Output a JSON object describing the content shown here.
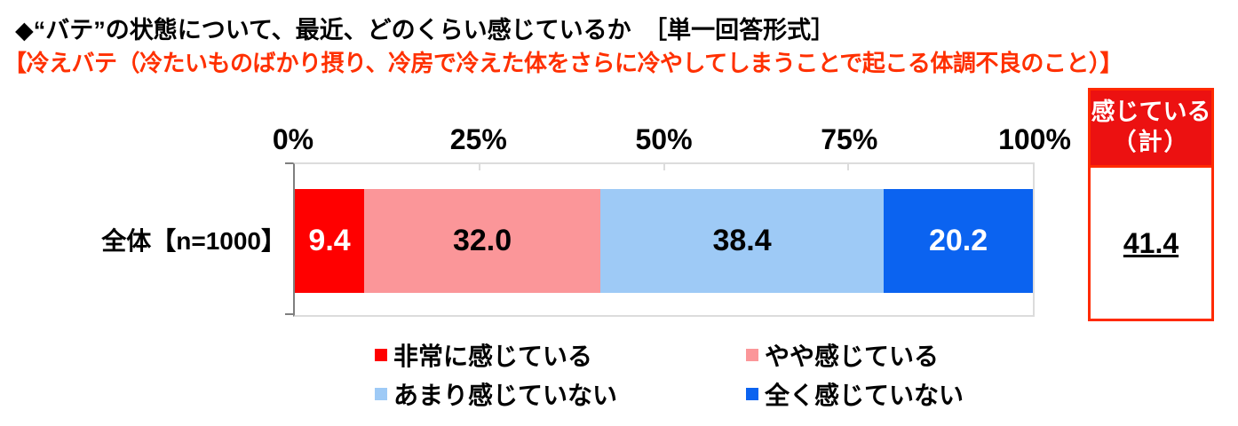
{
  "title": "◆“バテ”の状態について、最近、どのくらい感じているか　［単一回答形式］",
  "subtitle": "【冷えバテ（冷たいものばかり摂り、冷房で冷えた体をさらに冷やしてしまうことで起こる体調不良のこと）】",
  "chart_data": {
    "type": "bar",
    "orientation": "horizontal-stacked",
    "categories": [
      "全体【n=1000】"
    ],
    "x_ticks": [
      "0%",
      "25%",
      "50%",
      "75%",
      "100%"
    ],
    "xlim": [
      0,
      100
    ],
    "legend_position": "bottom",
    "series": [
      {
        "name": "非常に感じている",
        "value": 9.4,
        "label": "9.4",
        "color": "#ff0000",
        "text_color": "#ffffff"
      },
      {
        "name": "やや感じている",
        "value": 32.0,
        "label": "32.0",
        "color": "#fb9699",
        "text_color": "#000000"
      },
      {
        "name": "あまり感じていない",
        "value": 38.4,
        "label": "38.4",
        "color": "#9ecaf6",
        "text_color": "#000000"
      },
      {
        "name": "全く感じていない",
        "value": 20.2,
        "label": "20.2",
        "color": "#0b63f0",
        "text_color": "#ffffff"
      }
    ]
  },
  "summary_box": {
    "header_line1": "感じている",
    "header_line2": "（計）",
    "value": "41.4",
    "header_bg": "#ec1111",
    "border_color": "#ff2a00"
  }
}
